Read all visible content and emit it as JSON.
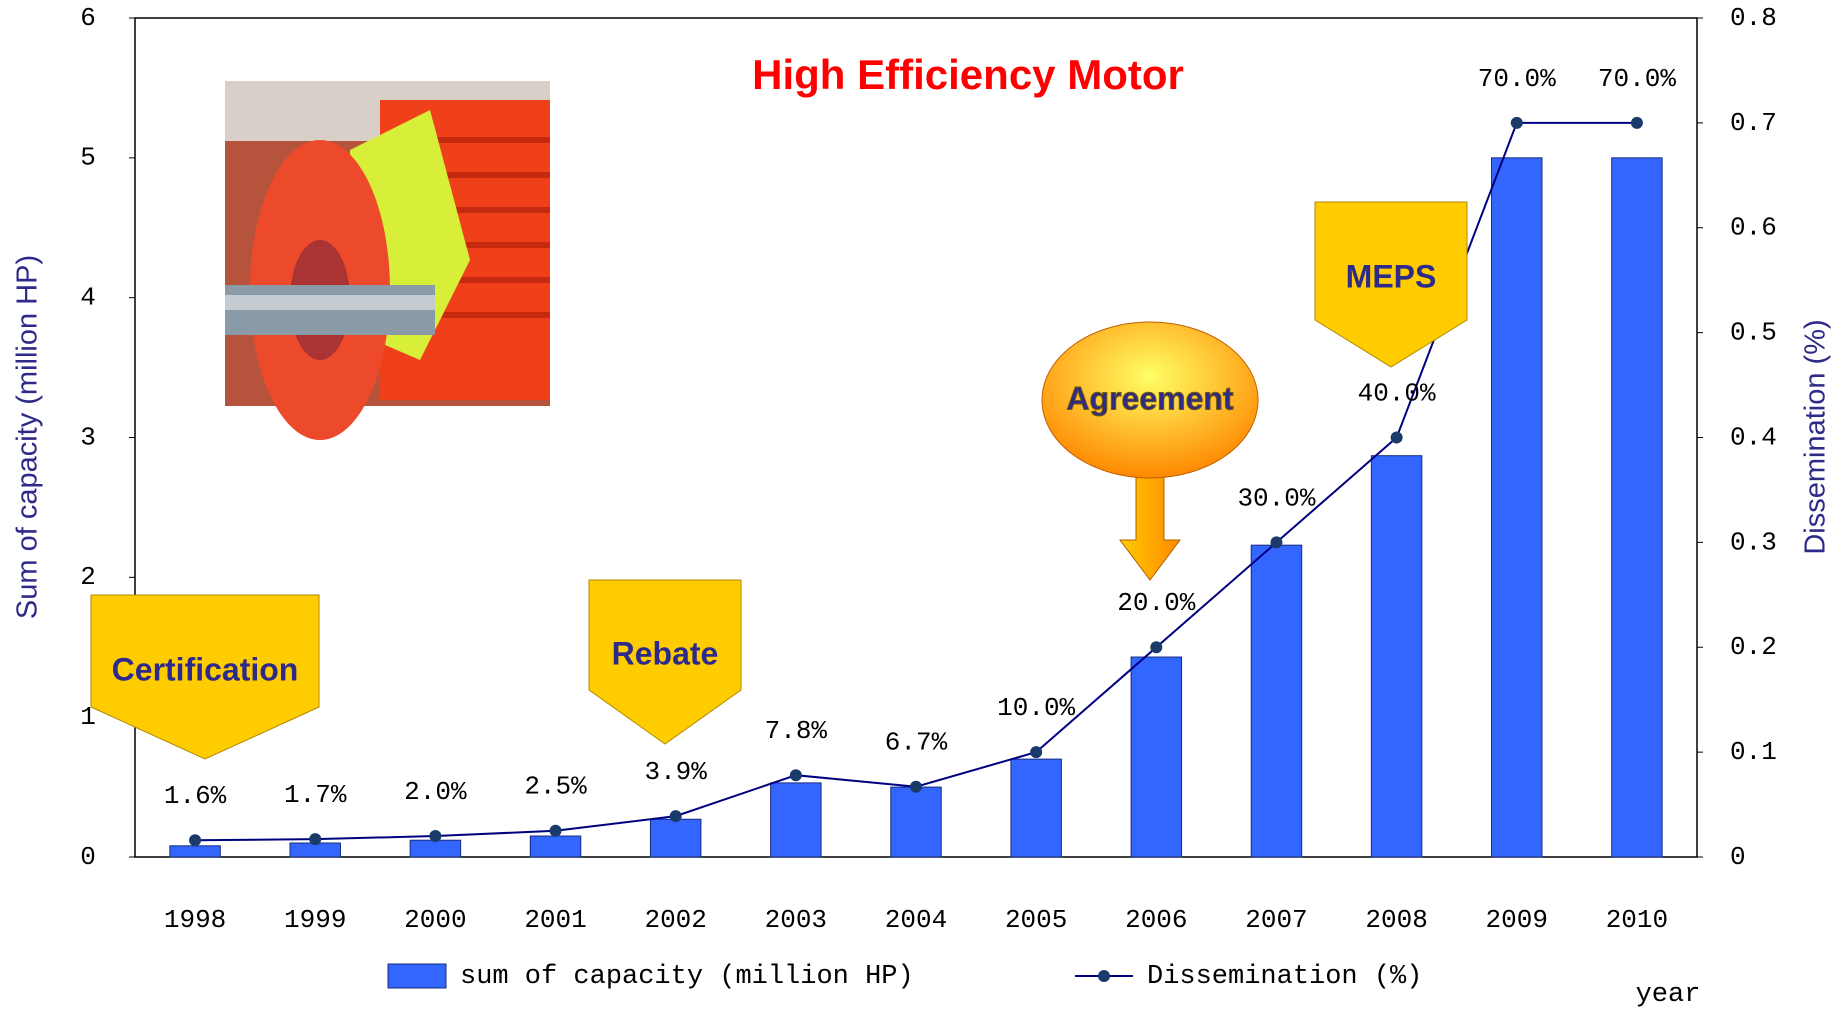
{
  "chart_data": {
    "type": "bar",
    "title": "High Efficiency Motor",
    "categories": [
      "1998",
      "1999",
      "2000",
      "2001",
      "2002",
      "2003",
      "2004",
      "2005",
      "2006",
      "2007",
      "2008",
      "2009",
      "2010"
    ],
    "series": [
      {
        "name": "sum of capacity (million HP)",
        "type": "bar",
        "color": "#3366ff",
        "values": [
          0.08,
          0.1,
          0.12,
          0.15,
          0.27,
          0.53,
          0.5,
          0.7,
          1.43,
          2.23,
          2.87,
          5.0,
          5.0
        ]
      },
      {
        "name": "Dissemination (%)",
        "type": "line",
        "axis": "y2",
        "color": "#000080",
        "values": [
          0.016,
          0.017,
          0.02,
          0.025,
          0.039,
          0.078,
          0.067,
          0.1,
          0.2,
          0.3,
          0.4,
          0.7,
          0.7
        ],
        "value_labels": [
          "1.6%",
          "1.7%",
          "2.0%",
          "2.5%",
          "3.9%",
          "7.8%",
          "6.7%",
          "10.0%",
          "20.0%",
          "30.0%",
          "40.0%",
          "70.0%",
          "70.0%"
        ]
      }
    ],
    "ylabel": "Sum of capacity (million HP)",
    "y2label": "Dissemination (%)",
    "xlabel": "year",
    "ylim": [
      0,
      6
    ],
    "yticks": [
      0,
      1,
      2,
      3,
      4,
      5,
      6
    ],
    "y2lim": [
      0,
      0.8
    ],
    "y2ticks": [
      0,
      0.1,
      0.2,
      0.3,
      0.4,
      0.5,
      0.6,
      0.7,
      0.8
    ],
    "legend": "bottom",
    "annotations": [
      "Certification",
      "Rebate",
      "Agreement",
      "MEPS"
    ]
  }
}
